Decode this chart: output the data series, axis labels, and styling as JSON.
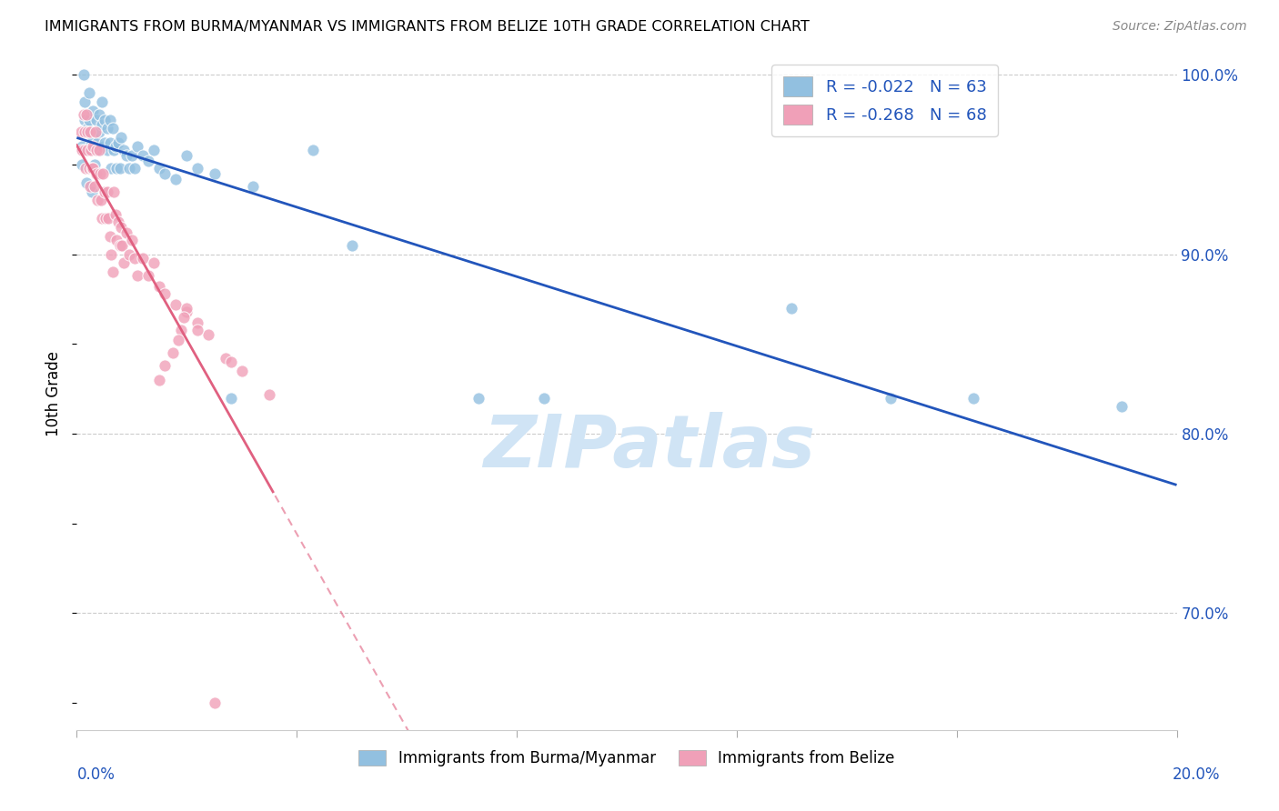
{
  "title": "IMMIGRANTS FROM BURMA/MYANMAR VS IMMIGRANTS FROM BELIZE 10TH GRADE CORRELATION CHART",
  "source": "Source: ZipAtlas.com",
  "ylabel": "10th Grade",
  "xlim": [
    0.0,
    0.2
  ],
  "ylim": [
    0.635,
    1.01
  ],
  "blue_R": -0.022,
  "blue_N": 63,
  "pink_R": -0.268,
  "pink_N": 68,
  "blue_color": "#92c0e0",
  "pink_color": "#f0a0b8",
  "blue_line_color": "#2255bb",
  "pink_line_color": "#e06080",
  "watermark": "ZIPatlas",
  "watermark_color": "#d0e4f5",
  "blue_scatter_x": [
    0.001,
    0.001,
    0.0012,
    0.0015,
    0.0015,
    0.0018,
    0.002,
    0.0022,
    0.0022,
    0.0025,
    0.0025,
    0.0028,
    0.003,
    0.003,
    0.0032,
    0.0032,
    0.0035,
    0.0038,
    0.004,
    0.004,
    0.0042,
    0.0045,
    0.0045,
    0.0048,
    0.005,
    0.005,
    0.0055,
    0.0055,
    0.006,
    0.006,
    0.0062,
    0.0065,
    0.0068,
    0.007,
    0.0072,
    0.0075,
    0.0078,
    0.008,
    0.0085,
    0.009,
    0.0095,
    0.01,
    0.0105,
    0.011,
    0.012,
    0.013,
    0.014,
    0.015,
    0.016,
    0.018,
    0.02,
    0.022,
    0.025,
    0.028,
    0.032,
    0.043,
    0.05,
    0.073,
    0.085,
    0.13,
    0.148,
    0.163,
    0.19
  ],
  "blue_scatter_y": [
    0.96,
    0.95,
    1.0,
    0.985,
    0.975,
    0.94,
    0.97,
    0.99,
    0.975,
    0.96,
    0.948,
    0.935,
    0.98,
    0.965,
    0.96,
    0.95,
    0.975,
    0.962,
    0.978,
    0.968,
    0.958,
    0.985,
    0.972,
    0.96,
    0.975,
    0.962,
    0.97,
    0.958,
    0.975,
    0.962,
    0.948,
    0.97,
    0.958,
    0.96,
    0.948,
    0.962,
    0.948,
    0.965,
    0.958,
    0.955,
    0.948,
    0.955,
    0.948,
    0.96,
    0.955,
    0.952,
    0.958,
    0.948,
    0.945,
    0.942,
    0.955,
    0.948,
    0.945,
    0.82,
    0.938,
    0.958,
    0.905,
    0.82,
    0.82,
    0.87,
    0.82,
    0.82,
    0.815
  ],
  "pink_scatter_x": [
    0.0008,
    0.001,
    0.0012,
    0.0014,
    0.0015,
    0.0016,
    0.0018,
    0.002,
    0.002,
    0.0022,
    0.0024,
    0.0025,
    0.0026,
    0.0028,
    0.003,
    0.003,
    0.0032,
    0.0034,
    0.0035,
    0.0036,
    0.0038,
    0.004,
    0.0042,
    0.0044,
    0.0045,
    0.0048,
    0.005,
    0.0052,
    0.0055,
    0.0058,
    0.006,
    0.0062,
    0.0065,
    0.0068,
    0.007,
    0.0072,
    0.0075,
    0.0078,
    0.008,
    0.0082,
    0.0085,
    0.009,
    0.0095,
    0.01,
    0.0105,
    0.011,
    0.012,
    0.013,
    0.014,
    0.015,
    0.016,
    0.018,
    0.02,
    0.022,
    0.024,
    0.027,
    0.03,
    0.035,
    0.028,
    0.022,
    0.02,
    0.0195,
    0.019,
    0.0185,
    0.0175,
    0.016,
    0.015,
    0.025
  ],
  "pink_scatter_y": [
    0.968,
    0.958,
    0.978,
    0.968,
    0.958,
    0.948,
    0.978,
    0.968,
    0.958,
    0.948,
    0.938,
    0.968,
    0.958,
    0.948,
    0.96,
    0.948,
    0.938,
    0.968,
    0.958,
    0.945,
    0.93,
    0.958,
    0.945,
    0.93,
    0.92,
    0.945,
    0.935,
    0.92,
    0.935,
    0.92,
    0.91,
    0.9,
    0.89,
    0.935,
    0.922,
    0.908,
    0.918,
    0.905,
    0.915,
    0.905,
    0.895,
    0.912,
    0.9,
    0.908,
    0.898,
    0.888,
    0.898,
    0.888,
    0.895,
    0.882,
    0.878,
    0.872,
    0.868,
    0.862,
    0.855,
    0.842,
    0.835,
    0.822,
    0.84,
    0.858,
    0.87,
    0.865,
    0.858,
    0.852,
    0.845,
    0.838,
    0.83,
    0.65
  ],
  "background_color": "#ffffff",
  "grid_color": "#cccccc"
}
